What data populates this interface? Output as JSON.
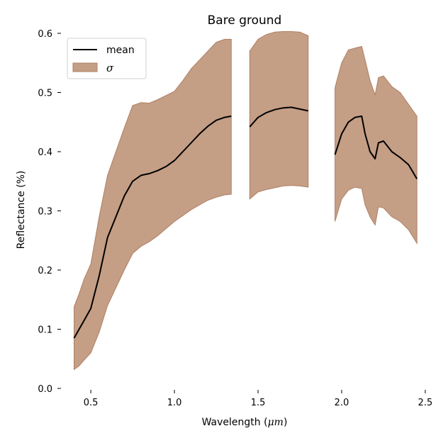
{
  "chart_data": {
    "type": "area",
    "title": "Bare ground",
    "xlabel_prefix": "Wavelength (",
    "xlabel_unit": "μm",
    "xlabel_suffix": ")",
    "ylabel": "Reflectance (%)",
    "xlim": [
      0.33,
      2.5
    ],
    "ylim": [
      0.0,
      0.6
    ],
    "xticks": [
      0.5,
      1.0,
      1.5,
      2.0,
      2.5
    ],
    "xtick_labels": [
      "0.5",
      "1.0",
      "1.5",
      "2.0",
      "2.5"
    ],
    "yticks": [
      0.0,
      0.1,
      0.2,
      0.3,
      0.4,
      0.5,
      0.6
    ],
    "ytick_labels": [
      "0.0",
      "0.1",
      "0.2",
      "0.3",
      "0.4",
      "0.5",
      "0.6"
    ],
    "grid": false,
    "legend_position": "top-left",
    "colors": {
      "mean": "#000000",
      "band_fill": "#c49e85",
      "band_edge": "#b08066"
    },
    "legend": [
      {
        "key": "mean",
        "label": "mean",
        "italic": false
      },
      {
        "key": "band",
        "label": "σ",
        "italic": true
      }
    ],
    "segments": [
      {
        "x": [
          0.4,
          0.43,
          0.46,
          0.5,
          0.55,
          0.6,
          0.65,
          0.7,
          0.75,
          0.8,
          0.85,
          0.9,
          0.95,
          1.0,
          1.05,
          1.1,
          1.15,
          1.2,
          1.25,
          1.3,
          1.34
        ],
        "mean": [
          0.085,
          0.1,
          0.115,
          0.135,
          0.19,
          0.255,
          0.29,
          0.325,
          0.35,
          0.36,
          0.363,
          0.368,
          0.375,
          0.385,
          0.4,
          0.415,
          0.43,
          0.443,
          0.453,
          0.458,
          0.46
        ],
        "upper": [
          0.138,
          0.16,
          0.185,
          0.21,
          0.29,
          0.36,
          0.4,
          0.44,
          0.478,
          0.483,
          0.482,
          0.488,
          0.495,
          0.502,
          0.52,
          0.54,
          0.555,
          0.57,
          0.585,
          0.59,
          0.59
        ],
        "lower": [
          0.032,
          0.038,
          0.048,
          0.06,
          0.095,
          0.14,
          0.17,
          0.2,
          0.228,
          0.24,
          0.248,
          0.258,
          0.27,
          0.282,
          0.292,
          0.302,
          0.31,
          0.318,
          0.323,
          0.327,
          0.328
        ]
      },
      {
        "x": [
          1.45,
          1.5,
          1.55,
          1.6,
          1.65,
          1.7,
          1.75,
          1.8
        ],
        "mean": [
          0.442,
          0.458,
          0.466,
          0.471,
          0.474,
          0.475,
          0.472,
          0.469
        ],
        "upper": [
          0.57,
          0.59,
          0.598,
          0.602,
          0.603,
          0.603,
          0.602,
          0.596
        ],
        "lower": [
          0.32,
          0.332,
          0.336,
          0.339,
          0.342,
          0.343,
          0.342,
          0.34
        ]
      },
      {
        "x": [
          1.96,
          2.0,
          2.04,
          2.08,
          2.12,
          2.14,
          2.17,
          2.2,
          2.22,
          2.25,
          2.3,
          2.35,
          2.4,
          2.45
        ],
        "mean": [
          0.395,
          0.43,
          0.45,
          0.458,
          0.46,
          0.43,
          0.4,
          0.388,
          0.415,
          0.418,
          0.4,
          0.39,
          0.378,
          0.354
        ],
        "upper": [
          0.508,
          0.55,
          0.572,
          0.575,
          0.578,
          0.555,
          0.52,
          0.496,
          0.525,
          0.528,
          0.51,
          0.5,
          0.48,
          0.46
        ],
        "lower": [
          0.282,
          0.32,
          0.335,
          0.34,
          0.338,
          0.31,
          0.29,
          0.276,
          0.307,
          0.305,
          0.29,
          0.282,
          0.268,
          0.245
        ]
      }
    ]
  }
}
